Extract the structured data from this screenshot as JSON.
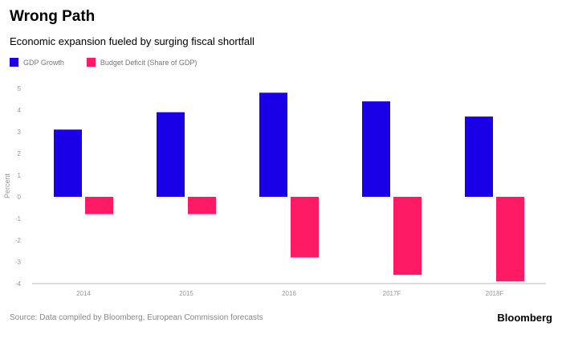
{
  "header": {
    "title": "Wrong Path",
    "subtitle": "Economic expansion fueled by surging fiscal shortfall"
  },
  "footer": {
    "source": "Source: Data compiled by Bloomberg, European Commission forecasts",
    "logo": "Bloomberg"
  },
  "colors": {
    "gdp": "#1a00e6",
    "deficit": "#ff1a66"
  },
  "chart_data": {
    "type": "bar",
    "categories": [
      "2014",
      "2015",
      "2016",
      "2017F",
      "2018F"
    ],
    "series": [
      {
        "name": "GDP Growth",
        "values": [
          3.1,
          3.9,
          4.8,
          4.4,
          3.7
        ]
      },
      {
        "name": "Budget Deficit (Share of GDP)",
        "values": [
          -0.8,
          -0.8,
          -2.8,
          -3.6,
          -3.9
        ]
      }
    ],
    "ylabel": "Percent",
    "ylim": [
      -4,
      5
    ],
    "yticks": [
      5,
      4,
      3,
      2,
      1,
      0,
      -1,
      -2,
      -3,
      -4
    ],
    "grid": false,
    "legend": "top-left"
  }
}
